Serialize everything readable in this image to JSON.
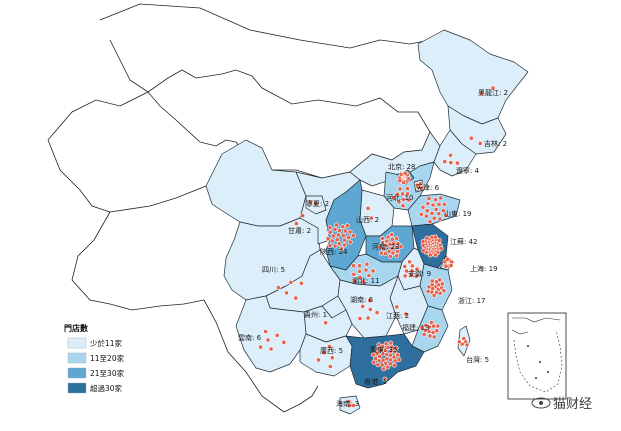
{
  "colors": {
    "tier1": "#dbeef9",
    "tier2": "#a8d6ef",
    "tier3": "#5ea7d2",
    "tier4": "#2e6f9e",
    "dot": "#e8604a",
    "border": "#1f2a33"
  },
  "legend": {
    "title": "門店數",
    "items": [
      {
        "label": "少於11家",
        "color": "#dbeef9"
      },
      {
        "label": "11至20家",
        "color": "#a8d6ef"
      },
      {
        "label": "21至30家",
        "color": "#5ea7d2"
      },
      {
        "label": "超過30家",
        "color": "#2e6f9e"
      }
    ]
  },
  "provinces": [
    {
      "key": "heilongjiang",
      "label": "黑龍江: 2",
      "count": 2
    },
    {
      "key": "jilin",
      "label": "吉林: 2",
      "count": 2
    },
    {
      "key": "liaoning",
      "label": "遼寧: 4",
      "count": 4
    },
    {
      "key": "beijing",
      "label": "北京: 28",
      "count": 28
    },
    {
      "key": "tianjin",
      "label": "天津: 6",
      "count": 6
    },
    {
      "key": "hebei",
      "label": "河北: 10",
      "count": 10
    },
    {
      "key": "shandong",
      "label": "山東: 19",
      "count": 19
    },
    {
      "key": "ningxia",
      "label": "寧夏: 2",
      "count": 2
    },
    {
      "key": "shanxi",
      "label": "山西: 2",
      "count": 2
    },
    {
      "key": "gansu",
      "label": "甘肅: 2",
      "count": 2
    },
    {
      "key": "shaanxi",
      "label": "陝西: 24",
      "count": 24
    },
    {
      "key": "henan",
      "label": "河南: 23",
      "count": 23
    },
    {
      "key": "jiangsu",
      "label": "江蘇: 42",
      "count": 42
    },
    {
      "key": "anhui",
      "label": "安徽: 9",
      "count": 9
    },
    {
      "key": "shanghai",
      "label": "上海: 19",
      "count": 19
    },
    {
      "key": "sichuan",
      "label": "四川: 5",
      "count": 5
    },
    {
      "key": "hubei",
      "label": "湖北: 11",
      "count": 11
    },
    {
      "key": "zhejiang",
      "label": "浙江: 17",
      "count": 17
    },
    {
      "key": "hunan",
      "label": "湖南: 6",
      "count": 6
    },
    {
      "key": "guizhou",
      "label": "貴州: 1",
      "count": 1
    },
    {
      "key": "jiangxi",
      "label": "江西: 2",
      "count": 2
    },
    {
      "key": "fujian",
      "label": "福建: 13",
      "count": 13
    },
    {
      "key": "yunnan",
      "label": "雲南: 6",
      "count": 6
    },
    {
      "key": "guangxi",
      "label": "廣西: 5",
      "count": 5
    },
    {
      "key": "guangdong",
      "label": "廣東: 35",
      "count": 35
    },
    {
      "key": "taiwan",
      "label": "台灣: 5",
      "count": 5
    },
    {
      "key": "hongkong",
      "label": "香港: 1",
      "count": 1
    },
    {
      "key": "hainan",
      "label": "海南: 3",
      "count": 3
    }
  ],
  "watermark": {
    "icon": "cat-eye-icon",
    "text": "猫财经"
  }
}
